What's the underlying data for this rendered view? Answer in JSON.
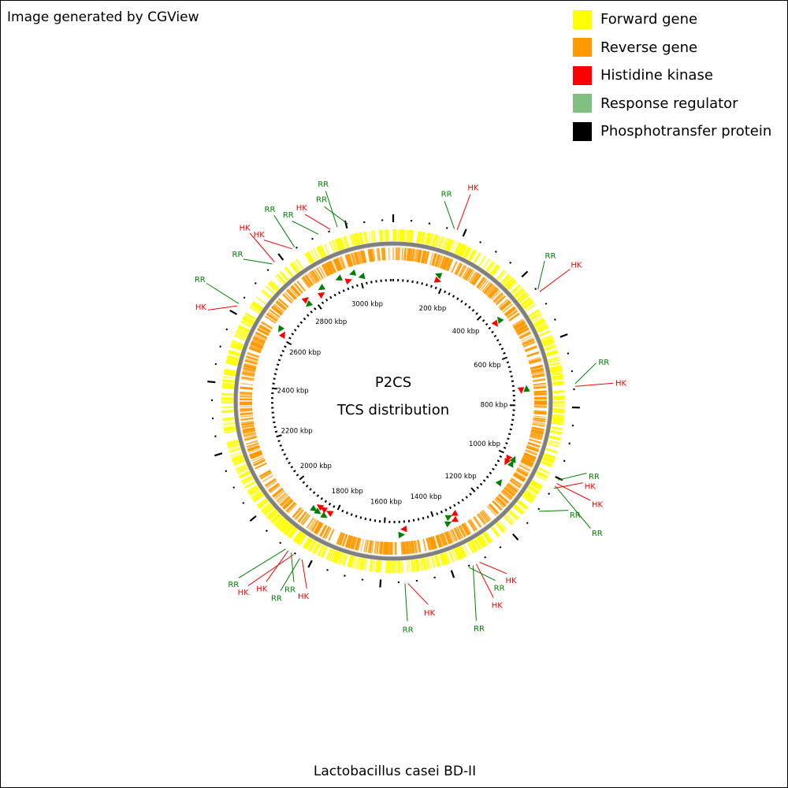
{
  "credit": "Image generated by CGView",
  "legend": [
    {
      "label": "Forward gene",
      "color": "#ffff00"
    },
    {
      "label": "Reverse gene",
      "color": "#ff9900"
    },
    {
      "label": "Histidine kinase",
      "color": "#ff0000"
    },
    {
      "label": "Response regulator",
      "color": "#80c080"
    },
    {
      "label": "Phosphotransfer protein",
      "color": "#000000"
    }
  ],
  "center_title": "P2CS",
  "center_subtitle": "TCS distribution",
  "organism": "Lactobacillus casei BD-II",
  "genome_length_kbp": 3130,
  "tick_labels": [
    "200 kbp",
    "400 kbp",
    "600 kbp",
    "800 kbp",
    "1000 kbp",
    "1200 kbp",
    "1400 kbp",
    "1600 kbp",
    "1800 kbp",
    "2000 kbp",
    "2200 kbp",
    "2400 kbp",
    "2600 kbp",
    "2800 kbp",
    "3000 kbp"
  ],
  "tick_values_kbp": [
    200,
    400,
    600,
    800,
    1000,
    1200,
    1400,
    1600,
    1800,
    2000,
    2200,
    2400,
    2600,
    2800,
    3000
  ],
  "features": [
    {
      "label": "RR",
      "kbp": 2920,
      "color": "#008000"
    },
    {
      "label": "HK",
      "kbp": 2955,
      "color": "#ff0000"
    },
    {
      "label": "RR",
      "kbp": 2975,
      "color": "#008000"
    },
    {
      "label": "RR",
      "kbp": 3005,
      "color": "#008000"
    },
    {
      "label": "RR",
      "kbp": 170,
      "color": "#008000"
    },
    {
      "label": "HK",
      "kbp": 178,
      "color": "#ff0000"
    },
    {
      "label": "RR",
      "kbp": 455,
      "color": "#008000"
    },
    {
      "label": "HK",
      "kbp": 463,
      "color": "#ff0000"
    },
    {
      "label": "RR",
      "kbp": 735,
      "color": "#008000"
    },
    {
      "label": "HK",
      "kbp": 742,
      "color": "#ff0000"
    },
    {
      "label": "RR",
      "kbp": 1005,
      "color": "#008000"
    },
    {
      "label": "HK",
      "kbp": 1015,
      "color": "#ff0000"
    },
    {
      "label": "RR",
      "kbp": 1023,
      "color": "#008000"
    },
    {
      "label": "HK",
      "kbp": 1030,
      "color": "#ff0000"
    },
    {
      "label": "RR",
      "kbp": 1105,
      "color": "#008000"
    },
    {
      "label": "HK",
      "kbp": 1320,
      "color": "#ff0000"
    },
    {
      "label": "HK",
      "kbp": 1330,
      "color": "#ff0000"
    },
    {
      "label": "RR",
      "kbp": 1340,
      "color": "#008000"
    },
    {
      "label": "RR",
      "kbp": 1352,
      "color": "#008000"
    },
    {
      "label": "HK",
      "kbp": 1525,
      "color": "#ff0000"
    },
    {
      "label": "RR",
      "kbp": 1533,
      "color": "#008000"
    },
    {
      "label": "HK",
      "kbp": 1825,
      "color": "#ff0000"
    },
    {
      "label": "RR",
      "kbp": 1832,
      "color": "#008000"
    },
    {
      "label": "HK",
      "kbp": 1852,
      "color": "#ff0000"
    },
    {
      "label": "RR",
      "kbp": 1860,
      "color": "#008000"
    },
    {
      "label": "HK",
      "kbp": 1870,
      "color": "#ff0000"
    },
    {
      "label": "RR",
      "kbp": 1878,
      "color": "#008000"
    },
    {
      "label": "HK",
      "kbp": 2620,
      "color": "#ff0000"
    },
    {
      "label": "RR",
      "kbp": 2628,
      "color": "#008000"
    },
    {
      "label": "RR",
      "kbp": 2770,
      "color": "#008000"
    },
    {
      "label": "HK",
      "kbp": 2778,
      "color": "#ff0000"
    },
    {
      "label": "HK",
      "kbp": 2838,
      "color": "#ff0000"
    },
    {
      "label": "RR",
      "kbp": 2846,
      "color": "#008000"
    }
  ]
}
